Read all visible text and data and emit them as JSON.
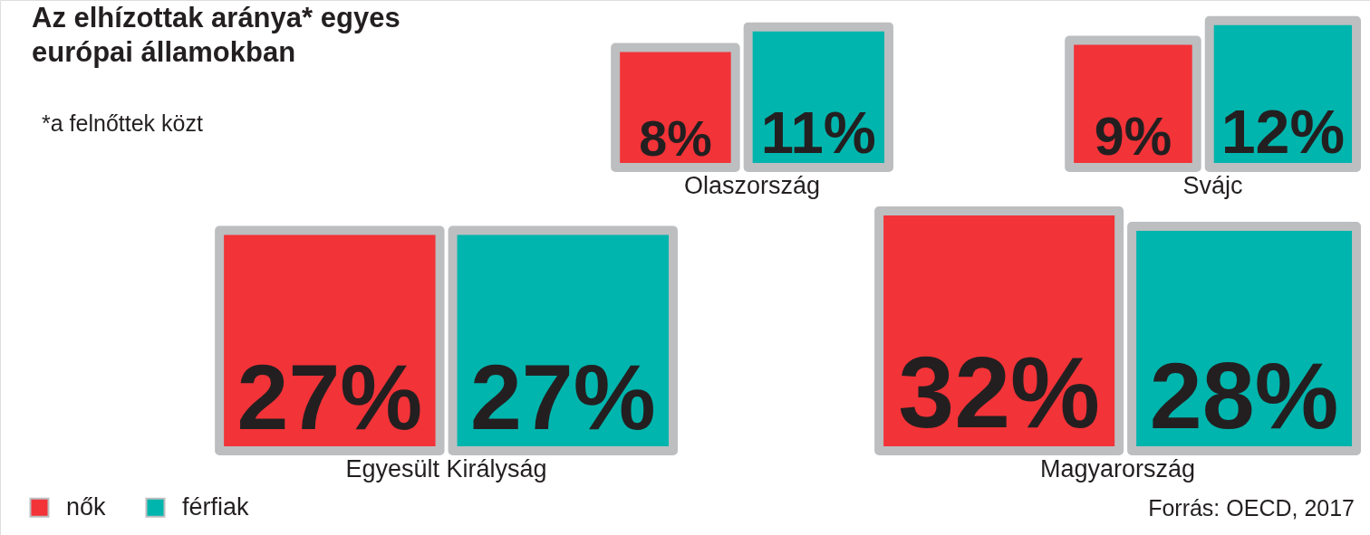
{
  "chart_data": {
    "type": "other",
    "title": "Az elhízottak aránya* egyes európai államokban",
    "categories": [
      "Olaszország",
      "Svájc",
      "Egyesült Királyság",
      "Magyarország"
    ],
    "series": [
      {
        "name": "nők",
        "color": "#f23338",
        "values": [
          8,
          9,
          27,
          32
        ],
        "value_labels": [
          "8%",
          "9%",
          "27%",
          "32%"
        ]
      },
      {
        "name": "férfiak",
        "color": "#00b5ad",
        "values": [
          11,
          12,
          27,
          28
        ],
        "value_labels": [
          "11%",
          "12%",
          "27%",
          "28%"
        ]
      }
    ],
    "annotations": [
      "*a felnőttek közt",
      "Forrás: OECD, 2017"
    ],
    "legend": "bottom left"
  }
}
